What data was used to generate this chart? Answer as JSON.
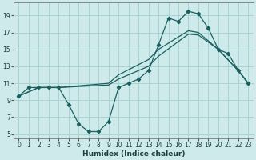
{
  "xlabel": "Humidex (Indice chaleur)",
  "bg_color": "#ceeaea",
  "grid_color": "#a8d4d4",
  "line_color": "#1a6060",
  "xlim": [
    -0.5,
    23.5
  ],
  "ylim": [
    4.5,
    20.5
  ],
  "xticks": [
    0,
    1,
    2,
    3,
    4,
    5,
    6,
    7,
    8,
    9,
    10,
    11,
    12,
    13,
    14,
    15,
    16,
    17,
    18,
    19,
    20,
    21,
    22,
    23
  ],
  "yticks": [
    5,
    7,
    9,
    11,
    13,
    15,
    17,
    19
  ],
  "line1_x": [
    0,
    1,
    2,
    3,
    4,
    5,
    6,
    7,
    8,
    9,
    10,
    11,
    12,
    13,
    14,
    15,
    16,
    17,
    18,
    19,
    20,
    21,
    22,
    23
  ],
  "line1_y": [
    9.5,
    10.5,
    10.5,
    10.5,
    10.5,
    8.5,
    6.2,
    5.3,
    5.3,
    6.5,
    10.5,
    11.0,
    11.5,
    12.5,
    15.5,
    18.7,
    18.3,
    19.5,
    19.2,
    17.5,
    15.0,
    14.5,
    12.5,
    11.0
  ],
  "line2_x": [
    0,
    2,
    3,
    4,
    9,
    10,
    13,
    14,
    17,
    18,
    20,
    22,
    23
  ],
  "line2_y": [
    9.5,
    10.5,
    10.5,
    10.5,
    11.0,
    12.0,
    13.8,
    15.0,
    17.2,
    17.0,
    15.0,
    12.5,
    11.0
  ],
  "line3_x": [
    0,
    2,
    3,
    4,
    9,
    10,
    13,
    14,
    17,
    18,
    20,
    22,
    23
  ],
  "line3_y": [
    9.5,
    10.5,
    10.5,
    10.5,
    10.8,
    11.5,
    13.0,
    14.2,
    16.8,
    16.7,
    15.0,
    12.5,
    11.0
  ]
}
